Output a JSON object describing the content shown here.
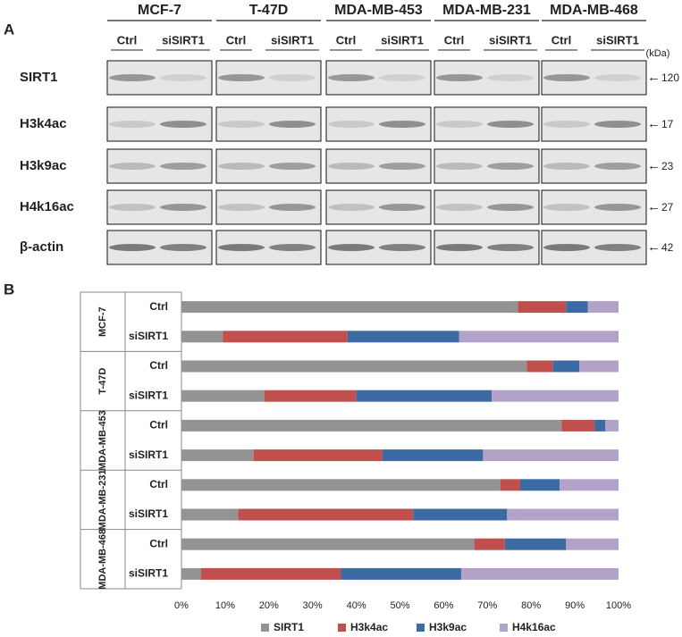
{
  "panel_labels": [
    "A",
    "B"
  ],
  "blot": {
    "cell_lines": [
      "MCF-7",
      "T-47D",
      "MDA-MB-453",
      "MDA-MB-231",
      "MDA-MB-468"
    ],
    "lanes": [
      "Ctrl",
      "siSIRT1"
    ],
    "unit": "(kDa)",
    "rows": [
      {
        "label": "SIRT1",
        "kda": 120
      },
      {
        "label": "H3k4ac",
        "kda": 17
      },
      {
        "label": "H3k9ac",
        "kda": 23
      },
      {
        "label": "H4k16ac",
        "kda": 27
      },
      {
        "label": "β-actin",
        "kda": 42
      }
    ]
  },
  "chart_data": {
    "type": "bar",
    "orientation": "horizontal",
    "stacked": true,
    "groups": [
      "MCF-7",
      "T-47D",
      "MDA-MB-453",
      "MDA-MB-231",
      "MDA-MB-468"
    ],
    "categories": [
      "Ctrl",
      "siSIRT1",
      "Ctrl",
      "siSIRT1",
      "Ctrl",
      "siSIRT1",
      "Ctrl",
      "siSIRT1",
      "Ctrl",
      "siSIRT1"
    ],
    "series": [
      {
        "name": "SIRT1",
        "color": "#939393",
        "values": [
          77,
          9.5,
          79,
          19,
          87,
          16.5,
          73,
          13,
          67,
          4.5
        ]
      },
      {
        "name": "H3k4ac",
        "color": "#c0504d",
        "values": [
          11,
          28.5,
          6,
          21,
          7.5,
          29.5,
          4.5,
          40,
          7,
          32
        ]
      },
      {
        "name": "H3k9ac",
        "color": "#3c6aa3",
        "values": [
          5,
          25.5,
          6,
          31,
          2.5,
          23,
          9,
          21.5,
          14,
          27.5
        ]
      },
      {
        "name": "H4k16ac",
        "color": "#b3a2c7",
        "values": [
          7,
          36.5,
          9,
          29,
          3,
          31,
          13.5,
          25.5,
          12,
          36
        ]
      }
    ],
    "xlim": [
      0,
      100
    ],
    "xticks": [
      {
        "value": 0,
        "label": "0%"
      },
      {
        "value": 10,
        "label": "10%"
      },
      {
        "value": 20,
        "label": "20%"
      },
      {
        "value": 30,
        "label": "30%"
      },
      {
        "value": 40,
        "label": "40%"
      },
      {
        "value": 50,
        "label": "50%"
      },
      {
        "value": 60,
        "label": "60%"
      },
      {
        "value": 70,
        "label": "70%"
      },
      {
        "value": 80,
        "label": "80%"
      },
      {
        "value": 90,
        "label": "90%"
      },
      {
        "value": 100,
        "label": "100%"
      }
    ],
    "legend": "bottom"
  }
}
